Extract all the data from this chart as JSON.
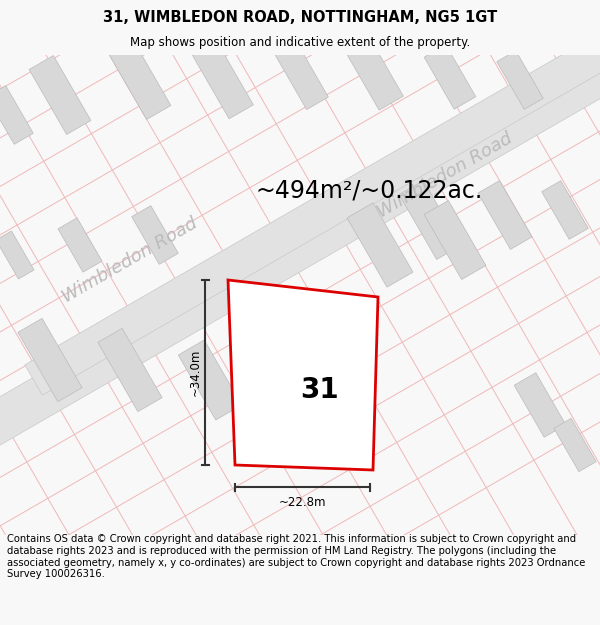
{
  "title": "31, WIMBLEDON ROAD, NOTTINGHAM, NG5 1GT",
  "subtitle": "Map shows position and indicative extent of the property.",
  "area_label": "~494m²/~0.122ac.",
  "dim_height": "~34.0m",
  "dim_width": "~22.8m",
  "property_number": "31",
  "road_label1": "Wimbledon Road",
  "road_label2": "Wimbledon Road",
  "footer": "Contains OS data © Crown copyright and database right 2021. This information is subject to Crown copyright and database rights 2023 and is reproduced with the permission of HM Land Registry. The polygons (including the associated geometry, namely x, y co-ordinates) are subject to Crown copyright and database rights 2023 Ordnance Survey 100026316.",
  "bg_color": "#f8f8f8",
  "map_bg": "#ffffff",
  "grid_line_color": "#f0b8b8",
  "street_fill_color": "#e2e2e2",
  "street_edge_color": "#c8c8c8",
  "property_edge_color": "#dd0000",
  "property_fill_color": "#ffffff",
  "building_fill_color": "#d8d8d8",
  "dim_line_color": "#333333",
  "text_color": "#000000",
  "road_text_color": "#bbbbbb",
  "title_fontsize": 10.5,
  "subtitle_fontsize": 8.5,
  "footer_fontsize": 7.2,
  "area_fontsize": 17,
  "dim_fontsize": 8.5,
  "property_num_fontsize": 20,
  "road_label_fontsize": 13
}
